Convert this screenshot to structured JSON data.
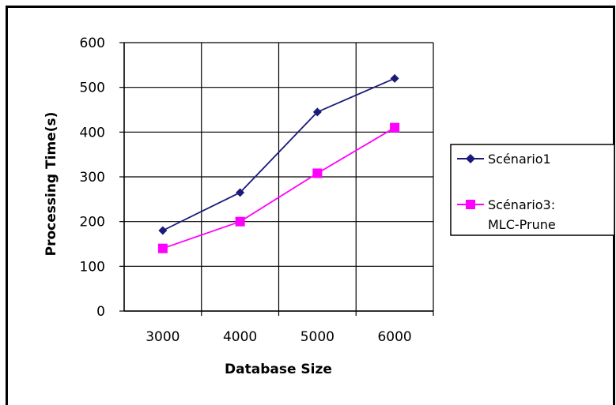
{
  "chart_data": {
    "type": "line",
    "title": "",
    "xlabel": "Database Size",
    "ylabel": "Processing Time(s)",
    "categories": [
      "3000",
      "4000",
      "5000",
      "6000"
    ],
    "ylim": [
      0,
      600
    ],
    "yticks": [
      "0",
      "100",
      "200",
      "300",
      "400",
      "500",
      "600"
    ],
    "grid": true,
    "legend_position": "right",
    "series": [
      {
        "name": "Scénario1",
        "values": [
          180,
          265,
          445,
          520
        ],
        "color": "#1a1a7a",
        "marker": "diamond"
      },
      {
        "name_lines": [
          "Scénario3:",
          "MLC-Prune"
        ],
        "values": [
          140,
          200,
          308,
          410
        ],
        "color": "#ff00ff",
        "marker": "square"
      }
    ]
  }
}
